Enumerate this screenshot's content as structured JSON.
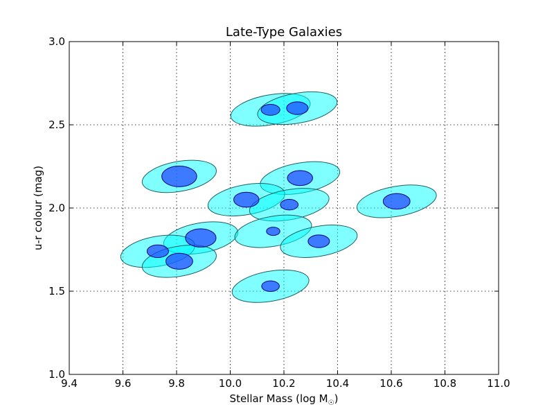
{
  "chart_data": {
    "type": "scatter",
    "title": "Late-Type Galaxies",
    "xlabel": "Stellar Mass (log M",
    "xlabel_subscript": "☉",
    "xlabel_close": ")",
    "ylabel": "u-r colour (mag)",
    "xlim": [
      9.4,
      11.0
    ],
    "ylim": [
      1.0,
      3.0
    ],
    "xticks": [
      "9.4",
      "9.6",
      "9.8",
      "10.0",
      "10.2",
      "10.4",
      "10.6",
      "10.8",
      "11.0"
    ],
    "yticks": [
      "1.0",
      "1.5",
      "2.0",
      "2.5",
      "3.0"
    ],
    "grid": true,
    "points": [
      {
        "x": 10.15,
        "y": 2.59,
        "outer_dx": 0.15,
        "outer_dy": 0.09,
        "inner_dx": 0.035,
        "inner_dy": 0.033
      },
      {
        "x": 10.25,
        "y": 2.6,
        "outer_dx": 0.15,
        "outer_dy": 0.09,
        "inner_dx": 0.04,
        "inner_dy": 0.038
      },
      {
        "x": 9.81,
        "y": 2.19,
        "outer_dx": 0.14,
        "outer_dy": 0.09,
        "inner_dx": 0.065,
        "inner_dy": 0.062
      },
      {
        "x": 10.26,
        "y": 2.18,
        "outer_dx": 0.15,
        "outer_dy": 0.09,
        "inner_dx": 0.047,
        "inner_dy": 0.045
      },
      {
        "x": 10.06,
        "y": 2.05,
        "outer_dx": 0.145,
        "outer_dy": 0.09,
        "inner_dx": 0.047,
        "inner_dy": 0.045
      },
      {
        "x": 10.22,
        "y": 2.02,
        "outer_dx": 0.15,
        "outer_dy": 0.09,
        "inner_dx": 0.033,
        "inner_dy": 0.032
      },
      {
        "x": 10.62,
        "y": 2.04,
        "outer_dx": 0.15,
        "outer_dy": 0.09,
        "inner_dx": 0.05,
        "inner_dy": 0.047
      },
      {
        "x": 9.89,
        "y": 1.82,
        "outer_dx": 0.14,
        "outer_dy": 0.09,
        "inner_dx": 0.057,
        "inner_dy": 0.055
      },
      {
        "x": 10.16,
        "y": 1.86,
        "outer_dx": 0.145,
        "outer_dy": 0.09,
        "inner_dx": 0.025,
        "inner_dy": 0.025
      },
      {
        "x": 10.33,
        "y": 1.8,
        "outer_dx": 0.145,
        "outer_dy": 0.09,
        "inner_dx": 0.04,
        "inner_dy": 0.038
      },
      {
        "x": 9.73,
        "y": 1.74,
        "outer_dx": 0.14,
        "outer_dy": 0.09,
        "inner_dx": 0.04,
        "inner_dy": 0.038
      },
      {
        "x": 9.81,
        "y": 1.68,
        "outer_dx": 0.14,
        "outer_dy": 0.09,
        "inner_dx": 0.05,
        "inner_dy": 0.048
      },
      {
        "x": 10.15,
        "y": 1.53,
        "outer_dx": 0.145,
        "outer_dy": 0.09,
        "inner_dx": 0.033,
        "inner_dy": 0.032
      }
    ],
    "colors": {
      "outer_fill": "#00ffff",
      "inner_fill": "#1f43ff",
      "axes": "#000000",
      "background": "#ffffff"
    }
  }
}
